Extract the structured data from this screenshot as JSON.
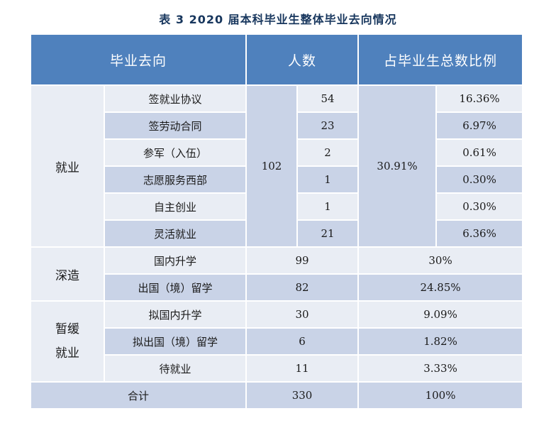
{
  "title": "表 3   2020 届本科毕业生整体毕业去向情况",
  "headers": {
    "destination": "毕业去向",
    "count": "人数",
    "ratio": "占毕业生总数比例"
  },
  "groups": {
    "employment": {
      "label": "就业",
      "count": "102",
      "ratio": "30.91%",
      "rows": [
        {
          "label": "签就业协议",
          "count": "54",
          "ratio": "16.36%"
        },
        {
          "label": "签劳动合同",
          "count": "23",
          "ratio": "6.97%"
        },
        {
          "label": "参军（入伍）",
          "count": "2",
          "ratio": "0.61%"
        },
        {
          "label": "志愿服务西部",
          "count": "1",
          "ratio": "0.30%"
        },
        {
          "label": "自主创业",
          "count": "1",
          "ratio": "0.30%"
        },
        {
          "label": "灵活就业",
          "count": "21",
          "ratio": "6.36%"
        }
      ]
    },
    "study": {
      "label": "深造",
      "rows": [
        {
          "label": "国内升学",
          "count": "99",
          "ratio": "30%"
        },
        {
          "label": "出国（境）留学",
          "count": "82",
          "ratio": "24.85%"
        }
      ]
    },
    "deferred": {
      "label_line1": "暂缓",
      "label_line2": "就业",
      "rows": [
        {
          "label": "拟国内升学",
          "count": "30",
          "ratio": "9.09%"
        },
        {
          "label": "拟出国（境）留学",
          "count": "6",
          "ratio": "1.82%"
        },
        {
          "label": "待就业",
          "count": "11",
          "ratio": "3.33%"
        }
      ]
    }
  },
  "total": {
    "label": "合计",
    "count": "330",
    "ratio": "100%"
  }
}
